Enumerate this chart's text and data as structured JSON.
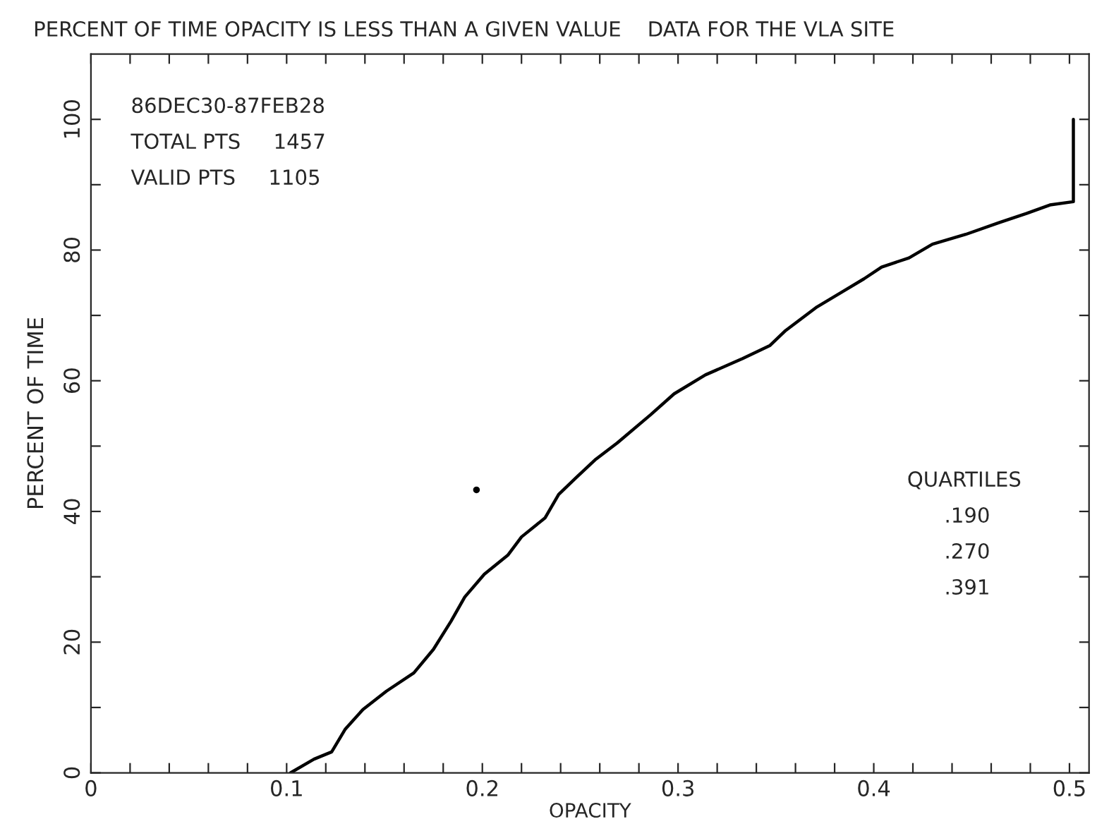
{
  "chart_data": {
    "type": "line",
    "title": "PERCENT OF TIME OPACITY IS LESS THAN A GIVEN VALUE    DATA FOR THE VLA SITE",
    "xlabel": "OPACITY",
    "ylabel": "PERCENT OF TIME",
    "series": [
      {
        "color": "#000000",
        "x": [
          0.102,
          0.114,
          0.123,
          0.13,
          0.139,
          0.151,
          0.165,
          0.175,
          0.184,
          0.191,
          0.201,
          0.213,
          0.22,
          0.232,
          0.239,
          0.248,
          0.258,
          0.269,
          0.286,
          0.298,
          0.314,
          0.333,
          0.347,
          0.355,
          0.371,
          0.385,
          0.395,
          0.404,
          0.418,
          0.43,
          0.447,
          0.464,
          0.478,
          0.49,
          0.502,
          0.502
        ],
        "values": [
          0,
          2.1,
          3.2,
          6.7,
          9.7,
          12.5,
          15.3,
          18.9,
          23.2,
          26.9,
          30.4,
          33.3,
          36.1,
          39,
          42.6,
          45.2,
          48,
          50.5,
          54.8,
          58,
          60.9,
          63.4,
          65.4,
          67.7,
          71.3,
          73.8,
          75.6,
          77.4,
          78.8,
          80.9,
          82.4,
          84.2,
          85.6,
          86.9,
          87.4,
          100
        ]
      },
      {
        "type": "scatter",
        "color": "#000000",
        "x": [
          0.197
        ],
        "values": [
          43.3
        ]
      }
    ],
    "xlim": [
      0,
      0.51
    ],
    "ylim": [
      0,
      110
    ],
    "xticks": [
      0,
      {
        "value": 0.02,
        "label": null
      },
      {
        "value": 0.04,
        "label": null
      },
      {
        "value": 0.06,
        "label": null
      },
      {
        "value": 0.08,
        "label": null
      },
      0.1,
      {
        "value": 0.12,
        "label": null
      },
      {
        "value": 0.14,
        "label": null
      },
      {
        "value": 0.16,
        "label": null
      },
      {
        "value": 0.18,
        "label": null
      },
      0.2,
      {
        "value": 0.22,
        "label": null
      },
      {
        "value": 0.24,
        "label": null
      },
      {
        "value": 0.26,
        "label": null
      },
      {
        "value": 0.28,
        "label": null
      },
      0.3,
      {
        "value": 0.32,
        "label": null
      },
      {
        "value": 0.34,
        "label": null
      },
      {
        "value": 0.36,
        "label": null
      },
      {
        "value": 0.38,
        "label": null
      },
      0.4,
      {
        "value": 0.42,
        "label": null
      },
      {
        "value": 0.44,
        "label": null
      },
      {
        "value": 0.46,
        "label": null
      },
      {
        "value": 0.48,
        "label": null
      },
      0.5
    ],
    "yticks": [
      0,
      {
        "value": 10,
        "label": null
      },
      20,
      {
        "value": 30,
        "label": null
      },
      40,
      {
        "value": 50,
        "label": null
      },
      60,
      {
        "value": 70,
        "label": null
      },
      80,
      {
        "value": 90,
        "label": null
      },
      100
    ],
    "grid": false,
    "marker": "none",
    "line_style": "solid",
    "annotations": [
      "86DEC30-87FEB28",
      "TOTAL PTS     1457",
      "VALID PTS     1105",
      "QUARTILES",
      ".190",
      ".270",
      ".391"
    ]
  }
}
